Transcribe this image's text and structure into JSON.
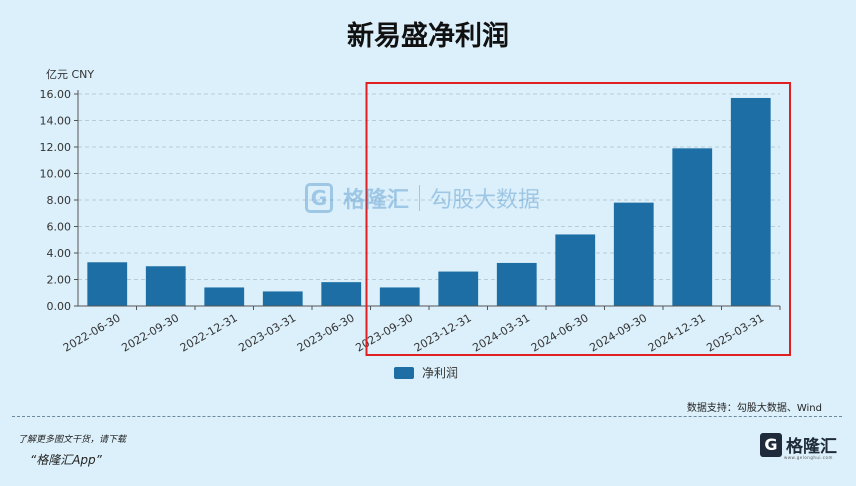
{
  "title": "新易盛净利润",
  "unit_label": "亿元  CNY",
  "legend_label": "净利润",
  "source_text": "数据支持：勾股大数据、Wind",
  "footer": {
    "line1": "了解更多图文干货，请下载",
    "line2": "“格隆汇App”"
  },
  "logo": {
    "mark": "G",
    "text": "格隆汇",
    "sub": "www.gelonghui.com"
  },
  "watermark": {
    "mark": "G",
    "text": "格隆汇",
    "text2": "勾股大数据"
  },
  "colors": {
    "bar": "#1c6ea4",
    "highlight_box": "#e02020",
    "grid": "#b9cbd8"
  },
  "chart_data": {
    "type": "bar",
    "title": "新易盛净利润",
    "ylabel": "亿元  CNY",
    "ylim": [
      0,
      16
    ],
    "yticks": [
      "0.00",
      "2.00",
      "4.00",
      "6.00",
      "8.00",
      "10.00",
      "12.00",
      "14.00",
      "16.00"
    ],
    "categories": [
      "2022-06-30",
      "2022-09-30",
      "2022-12-31",
      "2023-03-31",
      "2023-06-30",
      "2023-09-30",
      "2023-12-31",
      "2024-03-31",
      "2024-06-30",
      "2024-09-30",
      "2024-12-31",
      "2025-03-31"
    ],
    "series": [
      {
        "name": "净利润",
        "values": [
          3.3,
          3.0,
          1.4,
          1.1,
          1.8,
          1.4,
          2.6,
          3.25,
          5.4,
          7.8,
          11.9,
          15.7
        ]
      }
    ],
    "highlight_range": [
      "2023-09-30",
      "2025-03-31"
    ],
    "grid": true,
    "legend": "bottom-center"
  }
}
